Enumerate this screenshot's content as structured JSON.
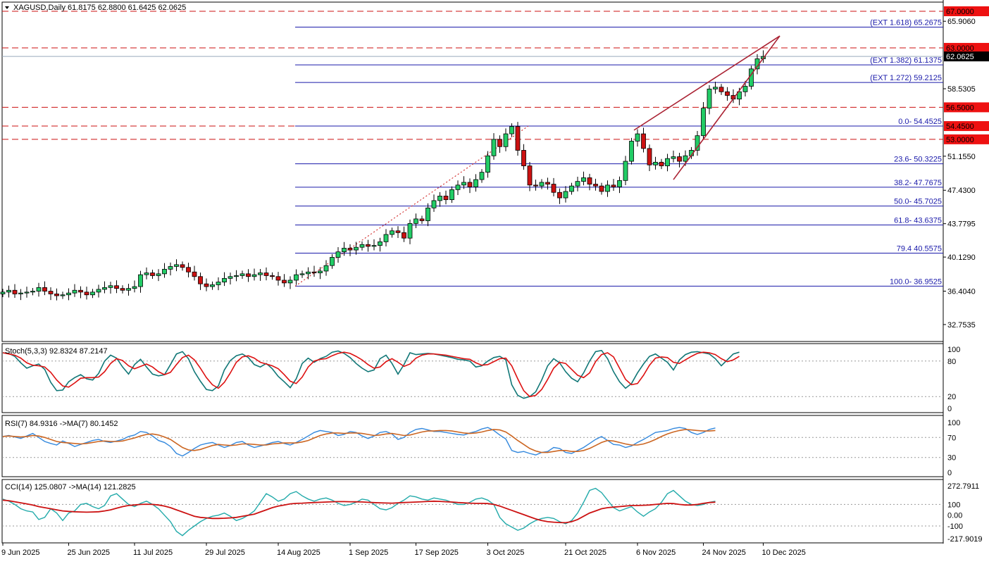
{
  "header": {
    "symbol_text": "XAGUSD,Daily  61.8175 62.8800 61.6425 62.0625",
    "current_price_label": "62.0625"
  },
  "colors": {
    "bull": "#22cc66",
    "bear": "#cc1111",
    "fib_line": "#1a1aaa",
    "fib_text": "#1a1aaa",
    "dashed_level": "#cc1111",
    "level_bg": "#ee1111",
    "wedge": "#aa2233",
    "stoch_main": "#117777",
    "stoch_signal": "#dd1111",
    "rsi_main": "#3388dd",
    "rsi_ma": "#cc6622",
    "cci_main": "#22aaaa",
    "cci_ma": "#cc1111"
  },
  "chart_data": [
    {
      "type": "candlestick",
      "title": "XAGUSD,Daily  61.8175 62.8800 61.6425 62.0625",
      "ylim": [
        30.9,
        68.0
      ],
      "y_ticks": [
        "65.9060",
        "58.5305",
        "51.1550",
        "47.4300",
        "43.7795",
        "40.1290",
        "36.4040",
        "32.7535"
      ],
      "x_ticks": [
        "9 Jun 2025",
        "25 Jun 2025",
        "11 Jul 2025",
        "29 Jul 2025",
        "14 Aug 2025",
        "1 Sep 2025",
        "17 Sep 2025",
        "3 Oct 2025",
        "21 Oct 2025",
        "6 Nov 2025",
        "24 Nov 2025",
        "10 Dec 2025"
      ],
      "dashed_levels": [
        "67.0000",
        "63.0000",
        "56.5000",
        "54.4500",
        "53.0000"
      ],
      "fib_levels": [
        {
          "label": "(EXT 1.618)  65.2675",
          "value": 65.2675
        },
        {
          "label": "(EXT 1.382)  61.1375",
          "value": 61.1375
        },
        {
          "label": "(EXT 1.272)  59.2125",
          "value": 59.2125
        },
        {
          "label": "0.0- 54.4525",
          "value": 54.4525
        },
        {
          "label": "23.6- 50.3225",
          "value": 50.3225
        },
        {
          "label": "38.2- 47.7675",
          "value": 47.7675
        },
        {
          "label": "50.0- 45.7025",
          "value": 45.7025
        },
        {
          "label": "61.8- 43.6375",
          "value": 43.6375
        },
        {
          "label": "79.4 40.5575",
          "value": 40.5575
        },
        {
          "label": "100.0- 36.9525",
          "value": 36.9525
        }
      ],
      "close_series": [
        36.3,
        36.5,
        36.1,
        36.2,
        36.3,
        36.4,
        36.8,
        36.4,
        36.1,
        35.9,
        36.0,
        36.2,
        36.5,
        36.3,
        36.0,
        36.3,
        36.6,
        36.8,
        37.0,
        36.7,
        36.5,
        36.7,
        36.9,
        38.2,
        38.4,
        38.1,
        38.3,
        38.8,
        39.1,
        39.3,
        39.0,
        38.5,
        38.0,
        37.2,
        36.9,
        37.1,
        37.4,
        37.8,
        38.0,
        38.1,
        38.3,
        38.0,
        38.2,
        38.4,
        38.1,
        38.0,
        37.6,
        37.3,
        37.6,
        38.2,
        38.3,
        38.5,
        38.4,
        38.6,
        39.2,
        40.1,
        40.7,
        41.1,
        40.9,
        41.2,
        41.5,
        41.3,
        41.4,
        41.8,
        42.6,
        43.0,
        42.8,
        42.2,
        43.8,
        44.3,
        44.1,
        45.5,
        46.3,
        46.8,
        46.4,
        47.5,
        48.0,
        48.3,
        47.8,
        48.6,
        49.4,
        51.2,
        53.0,
        52.2,
        53.6,
        54.4,
        51.8,
        50.1,
        48.0,
        47.9,
        48.3,
        48.1,
        47.2,
        46.6,
        47.3,
        47.9,
        48.4,
        48.8,
        48.1,
        47.9,
        47.3,
        48.0,
        47.8,
        48.5,
        50.6,
        52.8,
        53.6,
        52.0,
        50.2,
        50.5,
        50.1,
        50.9,
        51.1,
        50.6,
        51.2,
        51.8,
        53.4,
        56.4,
        58.5,
        58.7,
        58.2,
        57.8,
        57.4,
        58.2,
        58.8,
        60.7,
        61.8,
        62.06
      ]
    },
    {
      "type": "line",
      "title": "Stoch(5,3,3) 92.8324 87.2147",
      "ylim": [
        0,
        100
      ],
      "y_ticks": [
        "100",
        "80",
        "20",
        "0"
      ],
      "series": [
        {
          "values": [
            94,
            93,
            88,
            77,
            68,
            72,
            75,
            66,
            44,
            30,
            31,
            45,
            52,
            57,
            50,
            48,
            59,
            80,
            90,
            85,
            70,
            58,
            74,
            83,
            70,
            58,
            55,
            57,
            74,
            92,
            96,
            84,
            62,
            46,
            32,
            30,
            38,
            65,
            81,
            89,
            92,
            86,
            74,
            70,
            76,
            67,
            54,
            45,
            35,
            50,
            76,
            85,
            78,
            84,
            88,
            95,
            97,
            93,
            86,
            76,
            68,
            62,
            65,
            84,
            90,
            76,
            58,
            74,
            94,
            91,
            92,
            93,
            92,
            90,
            88,
            86,
            83,
            82,
            80,
            70,
            72,
            80,
            86,
            88,
            82,
            40,
            22,
            17,
            20,
            28,
            48,
            72,
            84,
            77,
            62,
            51,
            45,
            60,
            80,
            96,
            98,
            84,
            62,
            45,
            34,
            42,
            60,
            75,
            88,
            92,
            85,
            78,
            65,
            82,
            91,
            95,
            96,
            94,
            92,
            84,
            72,
            82,
            92,
            95
          ]
        },
        {
          "values": [
            94,
            92,
            90,
            85,
            77,
            73,
            72,
            70,
            61,
            48,
            38,
            36,
            43,
            51,
            52,
            52,
            53,
            62,
            76,
            84,
            81,
            72,
            67,
            71,
            75,
            70,
            62,
            57,
            61,
            74,
            86,
            90,
            82,
            68,
            52,
            40,
            34,
            44,
            60,
            78,
            87,
            89,
            85,
            78,
            75,
            72,
            67,
            57,
            46,
            42,
            53,
            70,
            80,
            83,
            84,
            89,
            93,
            95,
            93,
            88,
            82,
            74,
            68,
            70,
            79,
            84,
            78,
            71,
            75,
            85,
            90,
            92,
            92,
            91,
            90,
            88,
            86,
            84,
            83,
            77,
            73,
            74,
            79,
            84,
            85,
            72,
            50,
            30,
            20,
            22,
            32,
            49,
            68,
            78,
            76,
            66,
            56,
            52,
            60,
            79,
            91,
            94,
            87,
            68,
            49,
            40,
            42,
            56,
            73,
            85,
            87,
            86,
            78,
            76,
            82,
            88,
            93,
            95,
            94,
            91,
            84,
            79,
            82,
            88
          ]
        }
      ]
    },
    {
      "type": "line",
      "title": "RSI(7) 84.9316  ->MA(7) 80.1452",
      "ylim": [
        0,
        100
      ],
      "y_ticks": [
        "100",
        "70",
        "30",
        "0"
      ],
      "series": [
        {
          "values": [
            72,
            74,
            71,
            68,
            73,
            78,
            70,
            62,
            58,
            55,
            63,
            58,
            52,
            56,
            60,
            64,
            66,
            62,
            60,
            63,
            66,
            72,
            75,
            82,
            80,
            73,
            64,
            60,
            52,
            38,
            33,
            40,
            48,
            55,
            58,
            60,
            55,
            50,
            54,
            60,
            62,
            55,
            50,
            53,
            56,
            60,
            62,
            58,
            55,
            60,
            66,
            73,
            80,
            84,
            82,
            80,
            74,
            76,
            82,
            80,
            73,
            68,
            73,
            80,
            82,
            77,
            66,
            70,
            80,
            86,
            88,
            85,
            82,
            82,
            80,
            78,
            76,
            75,
            79,
            82,
            87,
            90,
            84,
            75,
            67,
            44,
            40,
            42,
            38,
            35,
            40,
            42,
            50,
            48,
            40,
            38,
            44,
            50,
            58,
            66,
            72,
            64,
            56,
            55,
            50,
            53,
            60,
            66,
            73,
            80,
            82,
            84,
            88,
            90,
            88,
            80,
            76,
            80,
            86,
            89
          ]
        },
        {
          "values": [
            72,
            73,
            72,
            71,
            72,
            74,
            73,
            70,
            66,
            62,
            60,
            59,
            58,
            57,
            58,
            60,
            62,
            63,
            62,
            62,
            63,
            66,
            69,
            73,
            76,
            77,
            75,
            71,
            66,
            58,
            50,
            45,
            44,
            46,
            50,
            54,
            56,
            55,
            54,
            55,
            57,
            57,
            56,
            55,
            55,
            57,
            58,
            59,
            59,
            59,
            61,
            64,
            69,
            74,
            77,
            79,
            79,
            78,
            79,
            79,
            78,
            76,
            74,
            75,
            77,
            78,
            76,
            74,
            75,
            78,
            81,
            83,
            83,
            84,
            84,
            83,
            81,
            79,
            78,
            79,
            81,
            84,
            86,
            85,
            81,
            73,
            64,
            56,
            48,
            43,
            40,
            40,
            42,
            44,
            44,
            42,
            42,
            44,
            48,
            54,
            60,
            64,
            63,
            60,
            57,
            55,
            55,
            57,
            61,
            66,
            72,
            77,
            81,
            84,
            86,
            85,
            84,
            83,
            83,
            84
          ]
        }
      ]
    },
    {
      "type": "line",
      "title": "CCI(14) 125.0807  ->MA(14) 121.2825",
      "ylim": [
        -217.9019,
        272.7911
      ],
      "y_ticks": [
        "272.7911",
        "100",
        "0.00",
        "-100",
        "-217.9019"
      ],
      "series": [
        {
          "values": [
            150,
            130,
            100,
            60,
            40,
            30,
            -40,
            -20,
            60,
            20,
            -50,
            20,
            40,
            100,
            110,
            80,
            60,
            90,
            180,
            200,
            150,
            100,
            80,
            110,
            130,
            100,
            60,
            0,
            -60,
            -150,
            -190,
            -140,
            -100,
            -60,
            -30,
            -10,
            0,
            20,
            -10,
            -50,
            -30,
            0,
            40,
            120,
            200,
            170,
            130,
            150,
            200,
            220,
            180,
            150,
            130,
            150,
            160,
            140,
            110,
            90,
            100,
            120,
            150,
            140,
            100,
            60,
            50,
            70,
            110,
            140,
            180,
            170,
            150,
            140,
            160,
            150,
            140,
            120,
            100,
            100,
            120,
            150,
            160,
            140,
            100,
            -20,
            -80,
            -110,
            -140,
            -120,
            -80,
            -50,
            -30,
            -20,
            -30,
            -60,
            -80,
            -50,
            20,
            120,
            230,
            250,
            210,
            140,
            70,
            40,
            60,
            80,
            30,
            -10,
            30,
            60,
            120,
            200,
            230,
            180,
            130,
            100,
            90,
            100,
            120,
            130
          ]
        },
        {
          "values": [
            140,
            135,
            125,
            115,
            105,
            95,
            80,
            70,
            60,
            50,
            40,
            35,
            32,
            30,
            28,
            30,
            32,
            40,
            50,
            65,
            80,
            90,
            95,
            100,
            102,
            100,
            95,
            85,
            70,
            50,
            30,
            10,
            -10,
            -20,
            -25,
            -30,
            -30,
            -28,
            -25,
            -20,
            -10,
            0,
            10,
            30,
            50,
            70,
            85,
            95,
            105,
            110,
            112,
            115,
            118,
            120,
            122,
            125,
            126,
            126,
            125,
            124,
            123,
            120,
            117,
            115,
            113,
            112,
            115,
            118,
            120,
            122,
            125,
            128,
            130,
            128,
            125,
            122,
            118,
            115,
            112,
            110,
            110,
            108,
            100,
            85,
            65,
            45,
            25,
            5,
            -15,
            -35,
            -50,
            -60,
            -65,
            -68,
            -70,
            -60,
            -40,
            -10,
            20,
            40,
            60,
            70,
            75,
            80,
            85,
            90,
            90,
            92,
            95,
            100,
            105,
            110,
            108,
            100,
            95,
            95,
            100,
            110,
            118,
            121
          ]
        }
      ]
    }
  ]
}
